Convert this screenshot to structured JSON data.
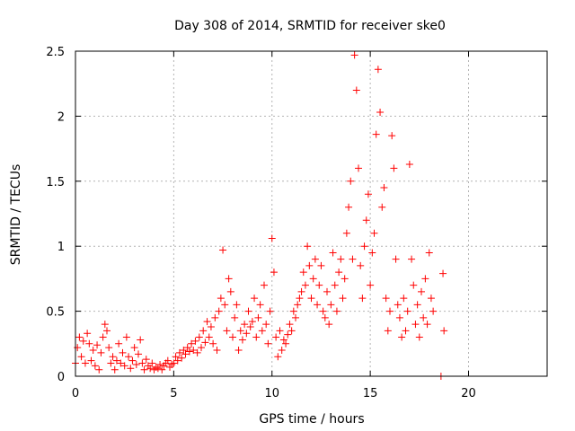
{
  "chart_data": {
    "type": "scatter",
    "title": "Day 308 of 2014, SRMTID for receiver ske0",
    "xlabel": "GPS time / hours",
    "ylabel": "SRMTID / TECUs",
    "xlim": [
      0,
      24
    ],
    "ylim": [
      0,
      2.5
    ],
    "grid": true,
    "x_ticks": [
      0,
      5,
      10,
      15,
      20
    ],
    "x_tick_labels": [
      "0",
      "5",
      "10",
      "15",
      "20"
    ],
    "y_ticks": [
      0,
      0.5,
      1,
      1.5,
      2,
      2.5
    ],
    "y_tick_labels": [
      "0",
      "0.5",
      "1",
      "1.5",
      "2",
      "2.5"
    ],
    "marker": "plus",
    "marker_color": "#ff0000",
    "series": [
      {
        "name": "SRMTID",
        "points": [
          [
            0.0,
            0.1
          ],
          [
            0.1,
            0.22
          ],
          [
            0.2,
            0.3
          ],
          [
            0.3,
            0.15
          ],
          [
            0.4,
            0.27
          ],
          [
            0.5,
            0.1
          ],
          [
            0.6,
            0.33
          ],
          [
            0.7,
            0.25
          ],
          [
            0.8,
            0.12
          ],
          [
            0.9,
            0.2
          ],
          [
            1.0,
            0.08
          ],
          [
            1.1,
            0.24
          ],
          [
            1.2,
            0.05
          ],
          [
            1.3,
            0.18
          ],
          [
            1.4,
            0.3
          ],
          [
            1.5,
            0.4
          ],
          [
            1.6,
            0.35
          ],
          [
            1.7,
            0.22
          ],
          [
            1.8,
            0.1
          ],
          [
            1.9,
            0.15
          ],
          [
            2.0,
            0.05
          ],
          [
            2.1,
            0.12
          ],
          [
            2.2,
            0.25
          ],
          [
            2.3,
            0.1
          ],
          [
            2.4,
            0.18
          ],
          [
            2.5,
            0.08
          ],
          [
            2.6,
            0.3
          ],
          [
            2.7,
            0.15
          ],
          [
            2.8,
            0.06
          ],
          [
            2.9,
            0.12
          ],
          [
            3.0,
            0.22
          ],
          [
            3.1,
            0.09
          ],
          [
            3.2,
            0.17
          ],
          [
            3.3,
            0.28
          ],
          [
            3.4,
            0.1
          ],
          [
            3.5,
            0.05
          ],
          [
            3.6,
            0.13
          ],
          [
            3.7,
            0.08
          ],
          [
            3.8,
            0.06
          ],
          [
            3.9,
            0.1
          ],
          [
            4.0,
            0.05
          ],
          [
            4.1,
            0.07
          ],
          [
            4.2,
            0.06
          ],
          [
            4.3,
            0.09
          ],
          [
            4.4,
            0.05
          ],
          [
            4.5,
            0.08
          ],
          [
            4.6,
            0.1
          ],
          [
            4.7,
            0.12
          ],
          [
            4.8,
            0.07
          ],
          [
            4.9,
            0.09
          ],
          [
            5.0,
            0.1
          ],
          [
            5.1,
            0.15
          ],
          [
            5.2,
            0.12
          ],
          [
            5.3,
            0.18
          ],
          [
            5.4,
            0.14
          ],
          [
            5.5,
            0.2
          ],
          [
            5.6,
            0.17
          ],
          [
            5.7,
            0.22
          ],
          [
            5.8,
            0.19
          ],
          [
            5.9,
            0.25
          ],
          [
            6.0,
            0.2
          ],
          [
            6.1,
            0.27
          ],
          [
            6.2,
            0.18
          ],
          [
            6.3,
            0.3
          ],
          [
            6.4,
            0.22
          ],
          [
            6.5,
            0.35
          ],
          [
            6.6,
            0.26
          ],
          [
            6.7,
            0.42
          ],
          [
            6.8,
            0.3
          ],
          [
            6.9,
            0.38
          ],
          [
            7.0,
            0.25
          ],
          [
            7.1,
            0.45
          ],
          [
            7.2,
            0.2
          ],
          [
            7.3,
            0.5
          ],
          [
            7.4,
            0.6
          ],
          [
            7.5,
            0.97
          ],
          [
            7.6,
            0.55
          ],
          [
            7.7,
            0.35
          ],
          [
            7.8,
            0.75
          ],
          [
            7.9,
            0.65
          ],
          [
            8.0,
            0.3
          ],
          [
            8.1,
            0.45
          ],
          [
            8.2,
            0.55
          ],
          [
            8.3,
            0.2
          ],
          [
            8.4,
            0.35
          ],
          [
            8.5,
            0.28
          ],
          [
            8.6,
            0.4
          ],
          [
            8.7,
            0.33
          ],
          [
            8.8,
            0.5
          ],
          [
            8.9,
            0.38
          ],
          [
            9.0,
            0.42
          ],
          [
            9.1,
            0.6
          ],
          [
            9.2,
            0.3
          ],
          [
            9.3,
            0.45
          ],
          [
            9.4,
            0.55
          ],
          [
            9.5,
            0.35
          ],
          [
            9.6,
            0.7
          ],
          [
            9.7,
            0.4
          ],
          [
            9.8,
            0.25
          ],
          [
            9.9,
            0.5
          ],
          [
            10.0,
            1.06
          ],
          [
            10.1,
            0.8
          ],
          [
            10.2,
            0.3
          ],
          [
            10.3,
            0.15
          ],
          [
            10.4,
            0.35
          ],
          [
            10.5,
            0.2
          ],
          [
            10.6,
            0.28
          ],
          [
            10.7,
            0.25
          ],
          [
            10.8,
            0.32
          ],
          [
            10.9,
            0.4
          ],
          [
            11.0,
            0.35
          ],
          [
            11.1,
            0.5
          ],
          [
            11.2,
            0.45
          ],
          [
            11.3,
            0.55
          ],
          [
            11.4,
            0.6
          ],
          [
            11.5,
            0.65
          ],
          [
            11.6,
            0.8
          ],
          [
            11.7,
            0.7
          ],
          [
            11.8,
            1.0
          ],
          [
            11.9,
            0.85
          ],
          [
            12.0,
            0.6
          ],
          [
            12.1,
            0.75
          ],
          [
            12.2,
            0.9
          ],
          [
            12.3,
            0.55
          ],
          [
            12.4,
            0.7
          ],
          [
            12.5,
            0.85
          ],
          [
            12.6,
            0.5
          ],
          [
            12.7,
            0.45
          ],
          [
            12.8,
            0.65
          ],
          [
            12.9,
            0.4
          ],
          [
            13.0,
            0.55
          ],
          [
            13.1,
            0.95
          ],
          [
            13.2,
            0.7
          ],
          [
            13.3,
            0.5
          ],
          [
            13.4,
            0.8
          ],
          [
            13.5,
            0.9
          ],
          [
            13.6,
            0.6
          ],
          [
            13.7,
            0.75
          ],
          [
            13.8,
            1.1
          ],
          [
            13.9,
            1.3
          ],
          [
            14.0,
            1.5
          ],
          [
            14.1,
            0.9
          ],
          [
            14.2,
            2.47
          ],
          [
            14.3,
            2.2
          ],
          [
            14.4,
            1.6
          ],
          [
            14.5,
            0.85
          ],
          [
            14.6,
            0.6
          ],
          [
            14.7,
            1.0
          ],
          [
            14.8,
            1.2
          ],
          [
            14.9,
            1.4
          ],
          [
            15.0,
            0.7
          ],
          [
            15.1,
            0.95
          ],
          [
            15.2,
            1.1
          ],
          [
            15.3,
            1.86
          ],
          [
            15.4,
            2.36
          ],
          [
            15.5,
            2.03
          ],
          [
            15.6,
            1.3
          ],
          [
            15.7,
            1.45
          ],
          [
            15.8,
            0.6
          ],
          [
            15.9,
            0.35
          ],
          [
            16.0,
            0.5
          ],
          [
            16.1,
            1.85
          ],
          [
            16.2,
            1.6
          ],
          [
            16.3,
            0.9
          ],
          [
            16.4,
            0.55
          ],
          [
            16.5,
            0.45
          ],
          [
            16.6,
            0.3
          ],
          [
            16.7,
            0.6
          ],
          [
            16.8,
            0.35
          ],
          [
            16.9,
            0.5
          ],
          [
            17.0,
            1.63
          ],
          [
            17.1,
            0.9
          ],
          [
            17.2,
            0.7
          ],
          [
            17.3,
            0.4
          ],
          [
            17.4,
            0.55
          ],
          [
            17.5,
            0.3
          ],
          [
            17.6,
            0.65
          ],
          [
            17.7,
            0.45
          ],
          [
            17.8,
            0.75
          ],
          [
            17.9,
            0.4
          ],
          [
            18.0,
            0.95
          ],
          [
            18.1,
            0.6
          ],
          [
            18.2,
            0.5
          ],
          [
            18.6,
            0.0
          ],
          [
            18.7,
            0.79
          ],
          [
            18.75,
            0.35
          ]
        ]
      }
    ]
  }
}
